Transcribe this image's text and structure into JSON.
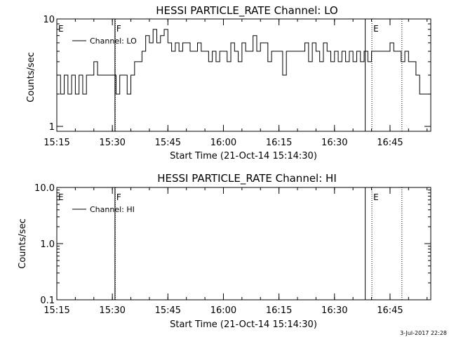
{
  "footer": {
    "timestamp": "3-Jul-2017 22:28"
  },
  "chart_data": [
    {
      "type": "line",
      "title": "HESSI PARTICLE_RATE Channel: LO",
      "xlabel": "Start Time (21-Oct-14 15:14:30)",
      "ylabel": "Counts/sec",
      "yscale": "log",
      "xlim": [
        0.5,
        101.5
      ],
      "ylim": [
        0.9,
        10
      ],
      "x_ticks": [
        {
          "value": 0.5,
          "label": "15:15"
        },
        {
          "value": 15.5,
          "label": "15:30"
        },
        {
          "value": 30.5,
          "label": "15:45"
        },
        {
          "value": 45.5,
          "label": "16:00"
        },
        {
          "value": 60.5,
          "label": "16:15"
        },
        {
          "value": 75.5,
          "label": "16:30"
        },
        {
          "value": 90.5,
          "label": "16:45"
        }
      ],
      "y_ticks": [
        {
          "value": 1,
          "label": "1"
        },
        {
          "value": 10,
          "label": "10"
        }
      ],
      "legend": {
        "label": "Channel: LO",
        "position": "top-left"
      },
      "markers": [
        {
          "label": "E",
          "x": 0.5,
          "style": "solid"
        },
        {
          "label": "F",
          "x": 16.2,
          "style": "solid"
        },
        {
          "label": "",
          "x": 16.3,
          "style": "dotted"
        },
        {
          "label": "",
          "x": 83.8,
          "style": "solid"
        },
        {
          "label": "E",
          "x": 85.6,
          "style": "dotted"
        },
        {
          "label": "",
          "x": 93.7,
          "style": "dotted"
        }
      ],
      "series": [
        {
          "name": "Channel: LO",
          "x": [
            0.5,
            1.5,
            2.5,
            3.5,
            4.5,
            5.5,
            6.5,
            7.5,
            8.5,
            9.5,
            10.5,
            11.5,
            12.5,
            13.5,
            14.5,
            15.5,
            16.5,
            17.5,
            18.5,
            19.5,
            20.5,
            21.5,
            22.5,
            23.5,
            24.5,
            25.5,
            26.5,
            27.5,
            28.5,
            29.5,
            30.5,
            31.5,
            32.5,
            33.5,
            34.5,
            35.5,
            36.5,
            37.5,
            38.5,
            39.5,
            40.5,
            41.5,
            42.5,
            43.5,
            44.5,
            45.5,
            46.5,
            47.5,
            48.5,
            49.5,
            50.5,
            51.5,
            52.5,
            53.5,
            54.5,
            55.5,
            56.5,
            57.5,
            58.5,
            59.5,
            60.5,
            61.5,
            62.5,
            63.5,
            64.5,
            65.5,
            66.5,
            67.5,
            68.5,
            69.5,
            70.5,
            71.5,
            72.5,
            73.5,
            74.5,
            75.5,
            76.5,
            77.5,
            78.5,
            79.5,
            80.5,
            81.5,
            82.5,
            83.5,
            84.5,
            85.5,
            86.5,
            87.5,
            88.5,
            89.5,
            90.5,
            91.5,
            92.5,
            93.5,
            94.5,
            95.5,
            96.5,
            97.5,
            98.5,
            99.5,
            100.5,
            101.5
          ],
          "y": [
            3,
            2,
            3,
            2,
            3,
            2,
            3,
            2,
            3,
            3,
            4,
            3,
            3,
            3,
            3,
            3,
            2,
            3,
            3,
            2,
            3,
            4,
            4,
            5,
            7,
            6,
            8,
            6,
            7,
            8,
            6,
            5,
            6,
            5,
            6,
            6,
            5,
            5,
            6,
            5,
            5,
            4,
            5,
            4,
            5,
            5,
            4,
            6,
            5,
            4,
            6,
            5,
            5,
            7,
            5,
            6,
            6,
            4,
            5,
            5,
            5,
            3,
            5,
            5,
            5,
            5,
            5,
            6,
            4,
            6,
            5,
            4,
            6,
            5,
            4,
            5,
            4,
            5,
            4,
            5,
            4,
            5,
            4,
            5,
            4,
            5,
            5,
            5,
            5,
            5,
            6,
            5,
            5,
            4,
            5,
            4,
            4,
            3,
            2,
            2,
            2,
            3
          ]
        }
      ]
    },
    {
      "type": "line",
      "title": "HESSI PARTICLE_RATE Channel: HI",
      "xlabel": "Start Time (21-Oct-14 15:14:30)",
      "ylabel": "Counts/sec",
      "yscale": "log",
      "xlim": [
        0.5,
        101.5
      ],
      "ylim": [
        0.1,
        10
      ],
      "x_ticks": [
        {
          "value": 0.5,
          "label": "15:15"
        },
        {
          "value": 15.5,
          "label": "15:30"
        },
        {
          "value": 30.5,
          "label": "15:45"
        },
        {
          "value": 45.5,
          "label": "16:00"
        },
        {
          "value": 60.5,
          "label": "16:15"
        },
        {
          "value": 75.5,
          "label": "16:30"
        },
        {
          "value": 90.5,
          "label": "16:45"
        }
      ],
      "y_ticks": [
        {
          "value": 0.1,
          "label": "0.1"
        },
        {
          "value": 1,
          "label": "1.0"
        },
        {
          "value": 10,
          "label": "10.0"
        }
      ],
      "legend": {
        "label": "Channel: HI",
        "position": "top-left"
      },
      "markers": [
        {
          "label": "E",
          "x": 0.5,
          "style": "solid"
        },
        {
          "label": "F",
          "x": 16.2,
          "style": "solid"
        },
        {
          "label": "",
          "x": 16.3,
          "style": "dotted"
        },
        {
          "label": "",
          "x": 83.8,
          "style": "solid"
        },
        {
          "label": "E",
          "x": 85.6,
          "style": "dotted"
        },
        {
          "label": "",
          "x": 93.7,
          "style": "dotted"
        }
      ],
      "series": [
        {
          "name": "Channel: HI",
          "x": [],
          "y": []
        }
      ]
    }
  ]
}
